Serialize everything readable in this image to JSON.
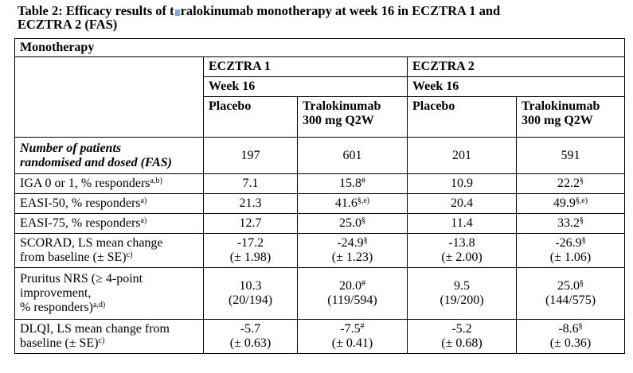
{
  "title": {
    "before": "Table 2: Efficacy results of t",
    "after": "ralokinumab monotherapy at week 16 in ECZTRA 1 and",
    "line2": "ECZTRA 2 (FAS)"
  },
  "section_header": "Monotherapy",
  "studies": [
    {
      "name": "ECZTRA 1",
      "week": "Week 16",
      "arms": [
        "Placebo",
        "Tralokinumab\n300 mg Q2W"
      ]
    },
    {
      "name": "ECZTRA 2",
      "week": "Week 16",
      "arms": [
        "Placebo",
        "Tralokinumab\n300 mg Q2W"
      ]
    }
  ],
  "arm_labels": {
    "placebo": "Placebo",
    "tralo_line1": "Tralokinumab",
    "tralo_line2": "300 mg Q2W"
  },
  "rows": [
    {
      "label_lines": [
        "Number of patients",
        "randomised and dosed (FAS)"
      ],
      "values": [
        {
          "main": "197"
        },
        {
          "main": "601"
        },
        {
          "main": "201"
        },
        {
          "main": "591"
        }
      ]
    },
    {
      "label": "IGA 0 or 1, % responders",
      "label_sup": "a,b)",
      "values": [
        {
          "main": "7.1"
        },
        {
          "main": "15.8",
          "sup": "#"
        },
        {
          "main": "10.9"
        },
        {
          "main": "22.2",
          "sup": "§"
        }
      ]
    },
    {
      "label": "EASI-50, % responders",
      "label_sup": "a)",
      "values": [
        {
          "main": "21.3"
        },
        {
          "main": "41.6",
          "sup": "§,e)"
        },
        {
          "main": "20.4"
        },
        {
          "main": "49.9",
          "sup": "§,e)"
        }
      ]
    },
    {
      "label": "EASI-75, % responders",
      "label_sup": "a)",
      "values": [
        {
          "main": "12.7"
        },
        {
          "main": "25.0",
          "sup": "§"
        },
        {
          "main": "11.4"
        },
        {
          "main": "33.2",
          "sup": "§"
        }
      ]
    },
    {
      "label_lines": [
        "SCORAD, LS mean change",
        "from baseline (± SE)"
      ],
      "label_sup": "c)",
      "values": [
        {
          "main": "-17.2",
          "second": "(± 1.98)"
        },
        {
          "main": "-24.9",
          "sup": "§",
          "second": "(± 1.23)"
        },
        {
          "main": "-13.8",
          "second": "(± 2.00)"
        },
        {
          "main": "-26.9",
          "sup": "§",
          "second": "(± 1.06)"
        }
      ]
    },
    {
      "label_lines": [
        "Pruritus NRS (≥ 4-point",
        "improvement,",
        "% responders)"
      ],
      "label_sup": "a,d)",
      "values": [
        {
          "main": "10.3",
          "second": "(20/194)"
        },
        {
          "main": "20.0",
          "sup": "#",
          "second": "(119/594)"
        },
        {
          "main": "9.5",
          "second": "(19/200)"
        },
        {
          "main": "25.0",
          "sup": "§",
          "second": "(144/575)"
        }
      ]
    },
    {
      "label_lines": [
        "DLQI, LS mean change from",
        "baseline (± SE)"
      ],
      "label_sup": "c)",
      "values": [
        {
          "main": "-5.7",
          "second": "(± 0.63)"
        },
        {
          "main": "-7.5",
          "sup": "#",
          "second": "(± 0.41)"
        },
        {
          "main": "-5.2",
          "second": "(± 0.68)"
        },
        {
          "main": "-8.6",
          "sup": "§",
          "second": "(± 0.36)"
        }
      ]
    }
  ]
}
